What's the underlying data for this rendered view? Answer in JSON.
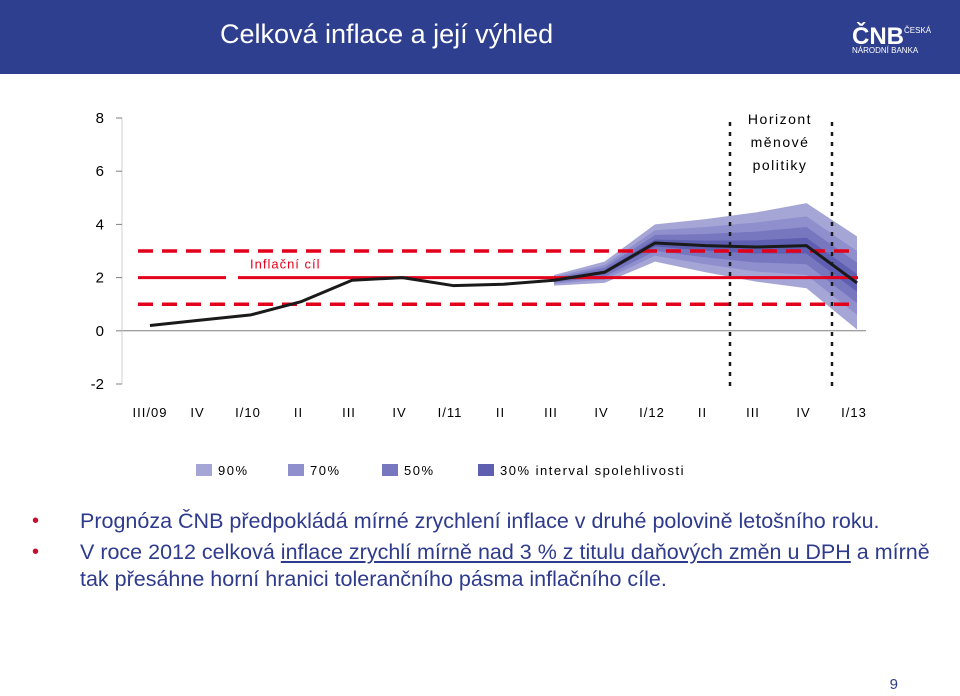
{
  "header": {
    "title": "Celková inflace a její výhled",
    "logo_text": "ČNB ČESKÁ NÁRODNÍ BANKA"
  },
  "chart_data": {
    "type": "line",
    "categories": [
      "III/09",
      "IV",
      "I/10",
      "II",
      "III",
      "IV",
      "I/11",
      "II",
      "III",
      "IV",
      "I/12",
      "II",
      "III",
      "IV",
      "I/13"
    ],
    "ylim": [
      -2,
      8
    ],
    "yticks": [
      "8",
      "6",
      "4",
      "2",
      "0",
      "-2"
    ],
    "series": [
      {
        "name": "",
        "values": [
          0.2,
          0.4,
          0.6,
          1.1,
          1.9,
          2.0,
          1.7,
          1.75,
          1.9,
          2.2,
          3.3,
          3.2,
          3.15,
          3.2,
          1.8
        ]
      }
    ],
    "forecast_start_index": 8,
    "fan_bands": {
      "labels": [
        "90%",
        "70%",
        "50%",
        "30% interval spolehlivosti"
      ],
      "colors": [
        "#a6a6d6",
        "#8f8fcd",
        "#7777c0",
        "#5f5fb2"
      ],
      "half_widths": [
        [
          0.2,
          0.4,
          0.7,
          1.0,
          1.3,
          1.6,
          1.75
        ],
        [
          0.13,
          0.27,
          0.48,
          0.7,
          0.92,
          1.1,
          1.2
        ],
        [
          0.08,
          0.17,
          0.3,
          0.44,
          0.58,
          0.7,
          0.76
        ],
        [
          0.03,
          0.07,
          0.13,
          0.19,
          0.25,
          0.3,
          0.33
        ]
      ]
    },
    "target_label": "Inflační cíl",
    "target_value": 2,
    "tolerance": [
      1,
      3
    ],
    "policy_horizon_label": [
      "Horizont",
      "měnové",
      "politiky"
    ],
    "colors": {
      "line": "#1a1a1a",
      "target": "#e3001b",
      "dash": "#e3001b"
    }
  },
  "bullets": [
    {
      "text": "Prognóza ČNB předpokládá mírné zrychlení inflace v druhé polovině letošního roku."
    },
    {
      "p1": "V roce 2012 celková ",
      "p2": "inflace zrychlí mírně nad 3 % z titulu daňových změn u DPH",
      "p3": " a mírně tak přesáhne horní hranici tolerančního pásma inflačního cíle."
    }
  ],
  "page_number": "9"
}
